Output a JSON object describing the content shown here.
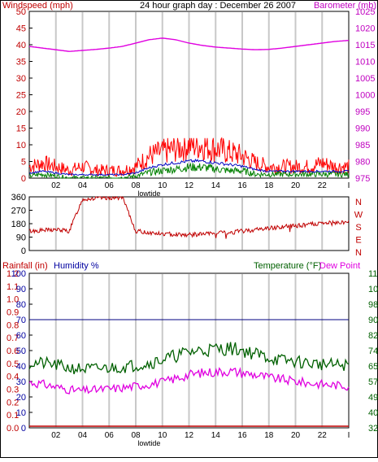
{
  "header": {
    "left_label": "Windspeed (mph)",
    "title": "24 hour graph day : December 26 2007",
    "right_label": "Barometer (mb)"
  },
  "lower_header": {
    "rainfall_label": "Rainfall (in)",
    "humidity_label": "Humidity %",
    "temperature_label": "Temperature (°F)",
    "dewpoint_label": "Dew Point"
  },
  "colors": {
    "wind": "#ff0000",
    "wind_avg": "#0000c0",
    "wind_low": "#008000",
    "barometer": "#e000e0",
    "direction": "#c00000",
    "humidity": "#000080",
    "temperature": "#006000",
    "dewpoint": "#e000e0",
    "rainfall": "#c00000",
    "grid": "#c8c8c8",
    "axis_left": "#c00000",
    "axis_right_top": "#c000c0",
    "axis_humidity": "#0000a0",
    "axis_temp": "#006000"
  },
  "x_axis": {
    "ticks": [
      "02",
      "04",
      "06",
      "08",
      "10",
      "12",
      "14",
      "16",
      "18",
      "20",
      "22",
      "I"
    ],
    "marker_label": "lowtide"
  },
  "chart_data": [
    {
      "type": "line",
      "title": "24 hour graph day : December 26 2007",
      "ylabel": "Windspeed (mph)",
      "y2label": "Barometer (mb)",
      "x_hours": [
        0,
        1,
        2,
        3,
        4,
        5,
        6,
        7,
        8,
        9,
        10,
        11,
        12,
        13,
        14,
        15,
        16,
        17,
        18,
        19,
        20,
        21,
        22,
        23,
        24
      ],
      "ylim": [
        0,
        50
      ],
      "y_ticks": [
        0,
        5,
        10,
        15,
        20,
        25,
        30,
        35,
        40,
        45,
        50
      ],
      "y2lim": [
        975,
        1025
      ],
      "y2_ticks": [
        975,
        980,
        985,
        990,
        995,
        1000,
        1005,
        1010,
        1015,
        1020,
        1025
      ],
      "series": [
        {
          "name": "gust",
          "values": [
            3,
            4,
            3,
            2,
            3,
            2,
            2,
            2,
            3,
            6,
            7,
            8,
            9,
            9,
            8,
            7,
            6,
            4,
            3,
            3,
            3,
            3,
            4,
            3,
            3
          ]
        },
        {
          "name": "average",
          "values": [
            1.5,
            2,
            1.5,
            1,
            1,
            1,
            1,
            1,
            1.5,
            3,
            4,
            4.5,
            5,
            5,
            4.5,
            4,
            3.5,
            2.5,
            2,
            2,
            2,
            2,
            2,
            2,
            2
          ]
        },
        {
          "name": "low",
          "values": [
            0.5,
            1,
            0.5,
            0,
            0,
            0,
            0,
            0,
            0.5,
            1.5,
            2,
            2.5,
            3,
            3,
            2.5,
            2,
            2,
            1,
            1,
            1,
            1,
            1,
            1,
            1,
            1
          ]
        },
        {
          "name": "barometer",
          "values": [
            1014.5,
            1014,
            1013.5,
            1013,
            1013.3,
            1013.6,
            1014,
            1014.5,
            1015.5,
            1016.5,
            1017,
            1016.5,
            1015.5,
            1014.8,
            1014.3,
            1014,
            1013.7,
            1013.5,
            1013.6,
            1014,
            1014.5,
            1015,
            1015.5,
            1016,
            1016.3
          ]
        }
      ]
    },
    {
      "type": "line",
      "ylim": [
        0,
        360
      ],
      "y_ticks": [
        0,
        90,
        180,
        270,
        360
      ],
      "y2_labels": [
        "N",
        "W",
        "S",
        "E",
        "N"
      ],
      "x_hours": [
        0,
        1,
        2,
        3,
        4,
        5,
        6,
        7,
        8,
        9,
        10,
        11,
        12,
        13,
        14,
        15,
        16,
        17,
        18,
        19,
        20,
        21,
        22,
        23,
        24
      ],
      "series": [
        {
          "name": "direction",
          "values": [
            130,
            135,
            140,
            130,
            345,
            350,
            355,
            355,
            130,
            120,
            110,
            110,
            105,
            110,
            115,
            120,
            130,
            140,
            150,
            160,
            165,
            175,
            180,
            185,
            190
          ]
        }
      ]
    },
    {
      "type": "line",
      "ylabel": "Rainfall (in)",
      "y2label": "Temperature (°F)",
      "x_hours": [
        0,
        1,
        2,
        3,
        4,
        5,
        6,
        7,
        8,
        9,
        10,
        11,
        12,
        13,
        14,
        15,
        16,
        17,
        18,
        19,
        20,
        21,
        22,
        23,
        24
      ],
      "rain_ticks": [
        "0.0",
        "0.1",
        "0.2",
        "0.3",
        "0.4",
        "0.5",
        "0.6",
        "0.7",
        "0.8",
        "0.9",
        "1.0",
        "1.1",
        "1.2"
      ],
      "humidity_ticks": [
        0,
        10,
        20,
        30,
        40,
        50,
        60,
        70,
        80,
        90,
        100
      ],
      "temp_ticks": [
        32,
        40,
        49,
        57,
        65,
        74,
        82,
        90,
        98,
        107,
        115
      ],
      "temp_lim": [
        32,
        115
      ],
      "series": [
        {
          "name": "humidity",
          "values": [
            70,
            70,
            70,
            70,
            70,
            70,
            70,
            70,
            70,
            70,
            70,
            70,
            70,
            70,
            70,
            70,
            70,
            70,
            70,
            70,
            70,
            70,
            70,
            70,
            70
          ]
        },
        {
          "name": "temperature",
          "values": [
            66,
            66,
            65,
            63.5,
            63,
            63,
            63.5,
            64,
            65,
            66,
            68,
            70,
            72,
            73,
            73.5,
            74,
            73,
            71,
            69,
            67.5,
            67,
            66,
            65.5,
            65,
            65
          ]
        },
        {
          "name": "dewpoint",
          "values": [
            56,
            55,
            53.5,
            52,
            51.5,
            52,
            52.5,
            53,
            54,
            55,
            56,
            58,
            60,
            61,
            61.5,
            62,
            61,
            60,
            58.5,
            57.5,
            56.5,
            55.5,
            55,
            54.5,
            54
          ]
        },
        {
          "name": "rainfall",
          "values": [
            0,
            0,
            0,
            0,
            0,
            0,
            0,
            0,
            0,
            0,
            0,
            0,
            0,
            0,
            0,
            0,
            0,
            0,
            0,
            0,
            0,
            0,
            0,
            0,
            0
          ]
        }
      ]
    }
  ]
}
